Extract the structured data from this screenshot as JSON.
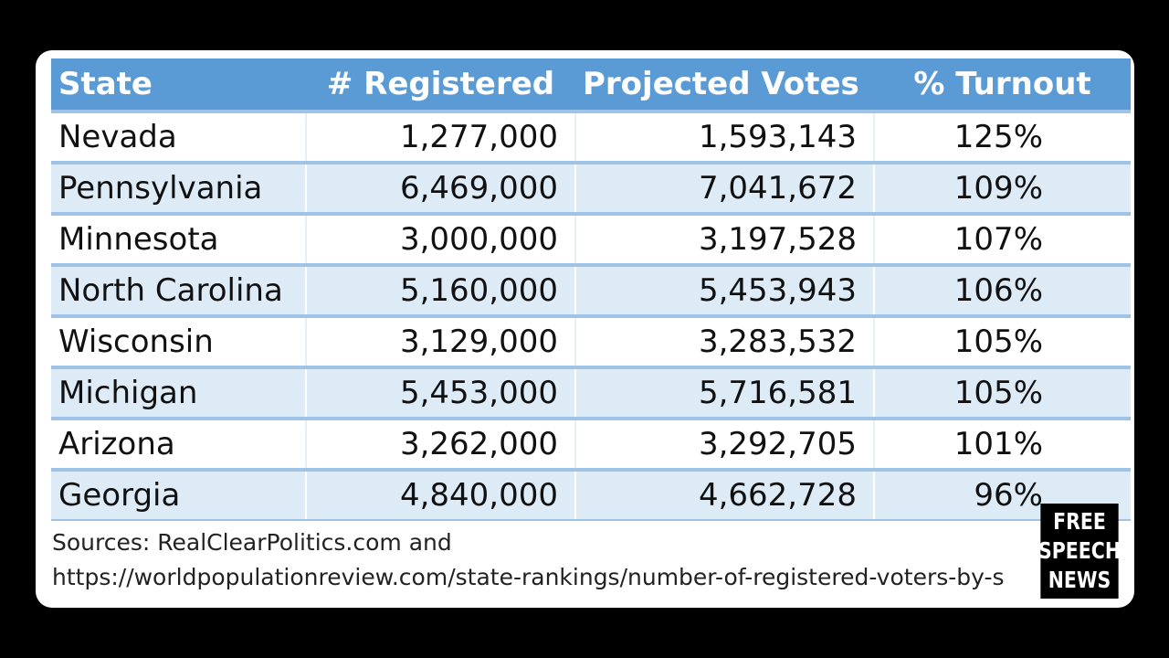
{
  "table": {
    "headers": [
      "State",
      "# Registered",
      "Projected Votes",
      "% Turnout"
    ],
    "rows": [
      {
        "state": "Nevada",
        "registered": "1,277,000",
        "projected": "1,593,143",
        "turnout": "125%"
      },
      {
        "state": "Pennsylvania",
        "registered": "6,469,000",
        "projected": "7,041,672",
        "turnout": "109%"
      },
      {
        "state": "Minnesota",
        "registered": "3,000,000",
        "projected": "3,197,528",
        "turnout": "107%"
      },
      {
        "state": "North Carolina",
        "registered": "5,160,000",
        "projected": "5,453,943",
        "turnout": "106%"
      },
      {
        "state": "Wisconsin",
        "registered": "3,129,000",
        "projected": "3,283,532",
        "turnout": "105%"
      },
      {
        "state": "Michigan",
        "registered": "5,453,000",
        "projected": "5,716,581",
        "turnout": "105%"
      },
      {
        "state": "Arizona",
        "registered": "3,262,000",
        "projected": "3,292,705",
        "turnout": "101%"
      },
      {
        "state": "Georgia",
        "registered": "4,840,000",
        "projected": "4,662,728",
        "turnout": "96%"
      }
    ]
  },
  "sources": {
    "line1": "Sources: RealClearPolitics.com and",
    "line2": "https://worldpopulationreview.com/state-rankings/number-of-registered-voters-by-s"
  },
  "watermark": {
    "lines": [
      "FREE",
      "SPEECH",
      "NEWS"
    ]
  },
  "colors": {
    "header_bg": "#5b9bd5",
    "band_bg": "#ddebf7",
    "row_border": "#9ec3e6",
    "frame_bg": "#000000"
  }
}
